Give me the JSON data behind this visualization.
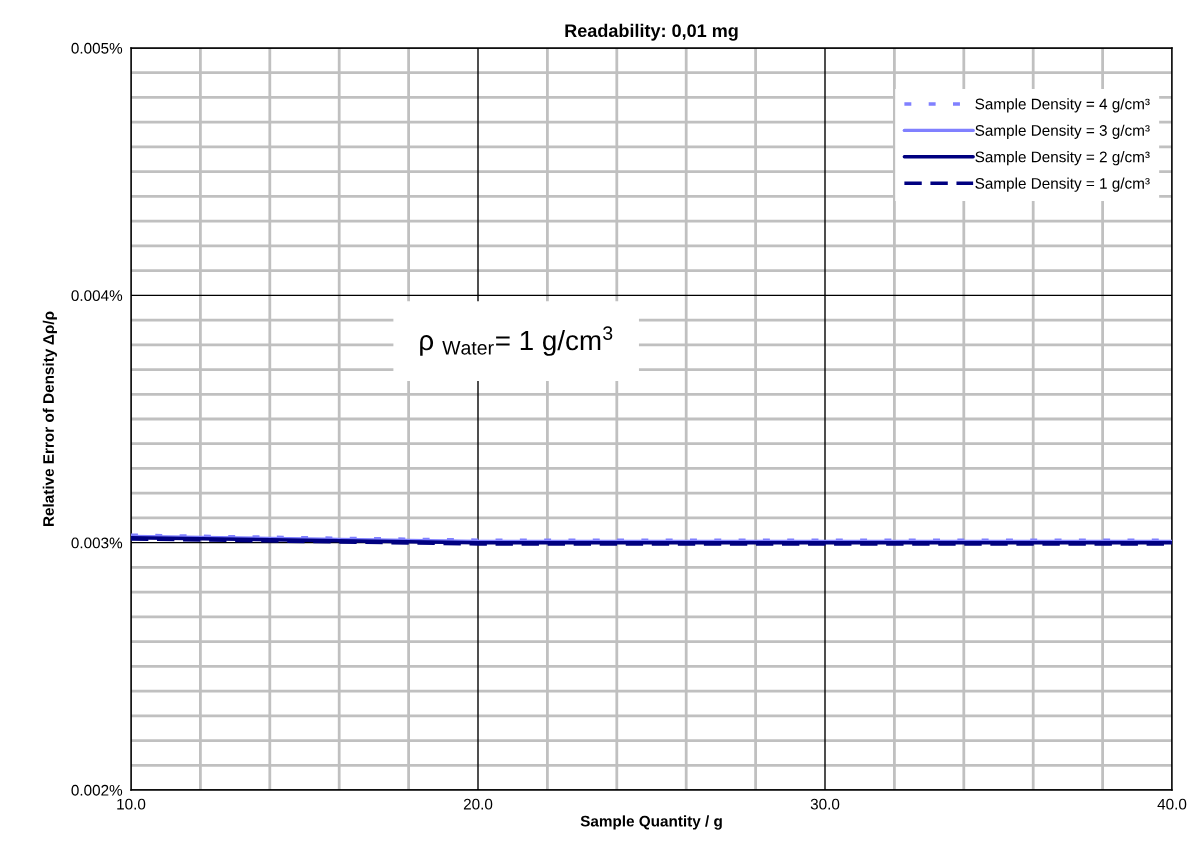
{
  "chart_data": {
    "type": "line",
    "title": "Readability: 0,01 mg",
    "xlabel": "Sample Quantity / g",
    "ylabel": "Relative Error of Density Δρ/ρ",
    "x": [
      10,
      15,
      20,
      25,
      30,
      35,
      40
    ],
    "series": [
      {
        "name": "Sample Density = 4 g/cm³",
        "color": "#8080ff",
        "line_style": "dotted",
        "values": [
          0.00303,
          0.00302,
          0.00301,
          0.00301,
          0.00301,
          0.00301,
          0.00301
        ]
      },
      {
        "name": "Sample Density = 3 g/cm³",
        "color": "#8080ff",
        "line_style": "solid",
        "values": [
          0.003025,
          0.003015,
          0.003005,
          0.003005,
          0.003005,
          0.003005,
          0.003005
        ]
      },
      {
        "name": "Sample Density = 2 g/cm³",
        "color": "#000080",
        "line_style": "solid",
        "values": [
          0.00302,
          0.00301,
          0.003,
          0.003,
          0.003,
          0.003,
          0.003
        ]
      },
      {
        "name": "Sample Density = 1 g/cm³",
        "color": "#000080",
        "line_style": "dashed",
        "values": [
          0.003015,
          0.003005,
          0.002995,
          0.002995,
          0.002995,
          0.002995,
          0.002995
        ]
      }
    ],
    "xlim": [
      10,
      40
    ],
    "xticks": [
      {
        "value": 10,
        "label": "10.0"
      },
      {
        "value": 12,
        "label": null
      },
      {
        "value": 14,
        "label": null
      },
      {
        "value": 16,
        "label": null
      },
      {
        "value": 18,
        "label": null
      },
      {
        "value": 20,
        "label": "20.0"
      },
      {
        "value": 22,
        "label": null
      },
      {
        "value": 24,
        "label": null
      },
      {
        "value": 26,
        "label": null
      },
      {
        "value": 28,
        "label": null
      },
      {
        "value": 30,
        "label": "30.0"
      },
      {
        "value": 32,
        "label": null
      },
      {
        "value": 34,
        "label": null
      },
      {
        "value": 36,
        "label": null
      },
      {
        "value": 38,
        "label": null
      },
      {
        "value": 40,
        "label": "40.0"
      }
    ],
    "ylim": [
      0.002,
      0.005
    ],
    "yticks": [
      {
        "value": 0.002,
        "label": "0.002%"
      },
      {
        "value": 0.0021,
        "label": null
      },
      {
        "value": 0.0022,
        "label": null
      },
      {
        "value": 0.0023,
        "label": null
      },
      {
        "value": 0.0024,
        "label": null
      },
      {
        "value": 0.0025,
        "label": null
      },
      {
        "value": 0.0026,
        "label": null
      },
      {
        "value": 0.0027,
        "label": null
      },
      {
        "value": 0.0028,
        "label": null
      },
      {
        "value": 0.0029,
        "label": null
      },
      {
        "value": 0.003,
        "label": "0.003%"
      },
      {
        "value": 0.0031,
        "label": null
      },
      {
        "value": 0.0032,
        "label": null
      },
      {
        "value": 0.0033,
        "label": null
      },
      {
        "value": 0.0034,
        "label": null
      },
      {
        "value": 0.0035,
        "label": null
      },
      {
        "value": 0.0036,
        "label": null
      },
      {
        "value": 0.0037,
        "label": null
      },
      {
        "value": 0.0038,
        "label": null
      },
      {
        "value": 0.0039,
        "label": null
      },
      {
        "value": 0.004,
        "label": "0.004%"
      },
      {
        "value": 0.0041,
        "label": null
      },
      {
        "value": 0.0042,
        "label": null
      },
      {
        "value": 0.0043,
        "label": null
      },
      {
        "value": 0.0044,
        "label": null
      },
      {
        "value": 0.0045,
        "label": null
      },
      {
        "value": 0.0046,
        "label": null
      },
      {
        "value": 0.0047,
        "label": null
      },
      {
        "value": 0.0048,
        "label": null
      },
      {
        "value": 0.0049,
        "label": null
      },
      {
        "value": 0.005,
        "label": "0.005%"
      }
    ],
    "grid": true,
    "legend": "top right",
    "marker": "none",
    "annotations": [
      "ρ $_{Water}$= 1 g/cm$^{3}$"
    ]
  }
}
